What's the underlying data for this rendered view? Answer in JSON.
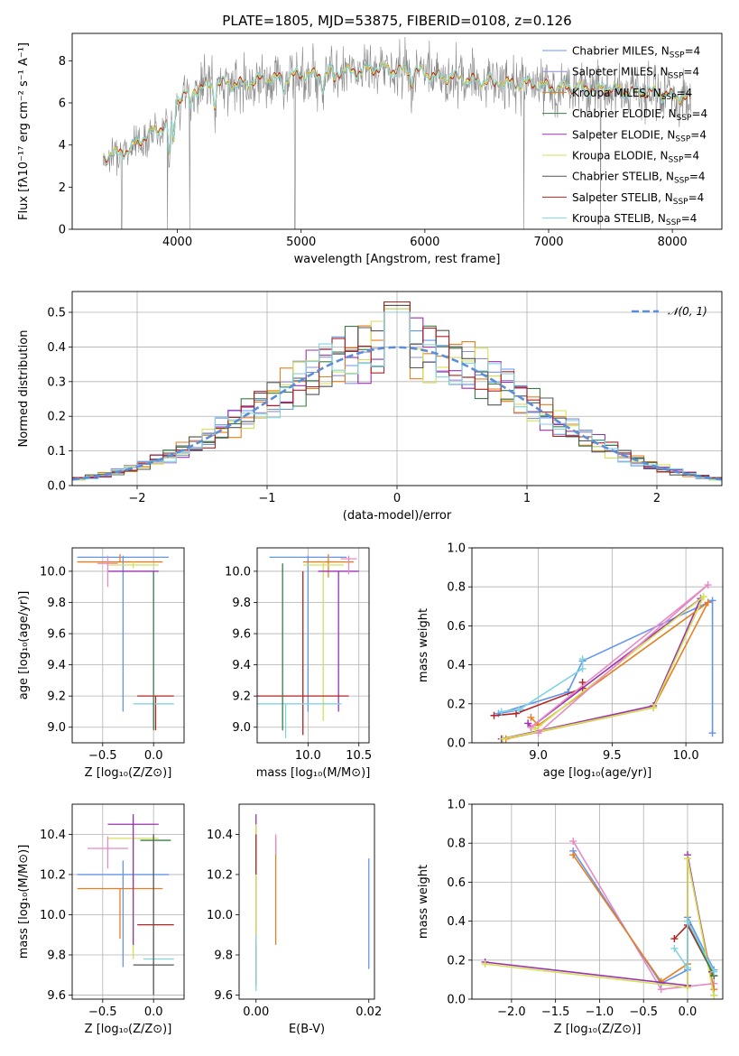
{
  "figure": {
    "title": "PLATE=1805, MJD=53875, FIBERID=0108, z=0.126",
    "model_colors": [
      "#6495ed",
      "#8f8fd9",
      "#e67e22",
      "#3a7d44",
      "#9b30b0",
      "#d4e157",
      "#555555",
      "#b22222",
      "#80d4e0"
    ]
  },
  "chart_data": [
    {
      "id": "spectrum",
      "type": "line",
      "xlabel": "wavelength [Angstrom, rest frame]",
      "ylabel": "Flux [fλ10⁻¹⁷ erg cm⁻² s⁻¹ A⁻¹]",
      "xlim": [
        3150,
        8400
      ],
      "ylim": [
        0,
        9.3
      ],
      "xticks": [
        4000,
        5000,
        6000,
        7000,
        8000
      ],
      "yticks": [
        0,
        2,
        4,
        6,
        8
      ],
      "grid": false,
      "legend": "top-right",
      "legend_entries": [
        {
          "label": "Chabrier MILES, N",
          "sub": "SSP",
          "tail": "=4",
          "color": "#6495ed"
        },
        {
          "label": "Salpeter MILES, N",
          "sub": "SSP",
          "tail": "=4",
          "color": "#8f8fd9"
        },
        {
          "label": "Kroupa MILES, N",
          "sub": "SSP",
          "tail": "=4",
          "color": "#e67e22"
        },
        {
          "label": "Chabrier ELODIE, N",
          "sub": "SSP",
          "tail": "=4",
          "color": "#3a7d44"
        },
        {
          "label": "Salpeter ELODIE, N",
          "sub": "SSP",
          "tail": "=4",
          "color": "#9b30b0"
        },
        {
          "label": "Kroupa ELODIE, N",
          "sub": "SSP",
          "tail": "=4",
          "color": "#d4e157"
        },
        {
          "label": "Chabrier STELIB, N",
          "sub": "SSP",
          "tail": "=4",
          "color": "#555555"
        },
        {
          "label": "Salpeter STELIB, N",
          "sub": "SSP",
          "tail": "=4",
          "color": "#b22222"
        },
        {
          "label": "Kroupa STELIB, N",
          "sub": "SSP",
          "tail": "=4",
          "color": "#80d4e0"
        }
      ],
      "continuum": {
        "x": [
          3400,
          3600,
          3800,
          3950,
          4000,
          4200,
          4400,
          4600,
          4800,
          5000,
          5200,
          5400,
          5600,
          5800,
          6000,
          6200,
          6400,
          6600,
          6800,
          7000,
          7200,
          7400,
          7600,
          7800,
          8000,
          8150
        ],
        "y": [
          3.4,
          3.8,
          4.6,
          5.2,
          6.2,
          6.8,
          6.9,
          7.0,
          7.2,
          7.3,
          7.4,
          7.5,
          7.6,
          7.6,
          7.4,
          7.2,
          7.1,
          7.0,
          6.9,
          6.8,
          6.7,
          6.7,
          6.6,
          6.5,
          6.4,
          6.1
        ]
      },
      "absorption_lines": [
        {
          "x": 3934,
          "depth": 1.6
        },
        {
          "x": 3969,
          "depth": 1.4
        },
        {
          "x": 4102,
          "depth": 0.9
        },
        {
          "x": 4304,
          "depth": 0.9
        },
        {
          "x": 4861,
          "depth": 0.6
        },
        {
          "x": 5175,
          "depth": 0.6
        },
        {
          "x": 5270,
          "depth": 0.4
        },
        {
          "x": 5893,
          "depth": 0.6
        },
        {
          "x": 6563,
          "depth": 0.4
        }
      ],
      "data_spikes": [
        {
          "x": 3550,
          "y": 0
        },
        {
          "x": 3920,
          "y": 0
        },
        {
          "x": 4100,
          "y": 0
        },
        {
          "x": 4950,
          "y": 0
        },
        {
          "x": 6800,
          "y": 0
        },
        {
          "x": 7420,
          "y": 0
        }
      ]
    },
    {
      "id": "residuals",
      "type": "area",
      "xlabel": "(data-model)/error",
      "ylabel": "Normed distribution",
      "xlim": [
        -2.5,
        2.5
      ],
      "ylim": [
        0,
        0.56
      ],
      "xticks": [
        -2,
        -1,
        0,
        1,
        2
      ],
      "yticks": [
        0.0,
        0.1,
        0.2,
        0.3,
        0.4,
        0.5
      ],
      "grid": true,
      "legend": "top-right",
      "legend_label": "𝒩(0, 1)",
      "bin_width": 0.1,
      "normal_curve": {
        "mean": 0,
        "sigma": 1,
        "color": "#5b8dd9"
      }
    },
    {
      "id": "age_vs_z",
      "type": "scatter",
      "xlabel": "Z [log₁₀(Z/Z⊙)]",
      "ylabel": "age  [log₁₀(age/yr)]",
      "xlim": [
        -0.8,
        0.3
      ],
      "ylim": [
        8.9,
        10.15
      ],
      "xticks": [
        -0.5,
        0.0
      ],
      "yticks": [
        9.0,
        9.2,
        9.4,
        9.6,
        9.8,
        10.0
      ],
      "grid": true,
      "points": [
        {
          "x": -0.3,
          "y": 10.09,
          "xerr": 0.45,
          "yerr_lo": 0.99,
          "yerr_hi": 0.01,
          "color": "#6495ed"
        },
        {
          "x": -0.33,
          "y": 10.06,
          "xerr": 0.42,
          "yerr_lo": 0.0,
          "yerr_hi": 0.05,
          "color": "#e67e22"
        },
        {
          "x": -0.2,
          "y": 10.04,
          "xerr": 0.25,
          "yerr_lo": 0.02,
          "yerr_hi": 0.02,
          "color": "#d4e157"
        },
        {
          "x": -0.2,
          "y": 10.0,
          "xerr": 0.25,
          "yerr_lo": 0.0,
          "yerr_hi": 0.0,
          "color": "#9b30b0"
        },
        {
          "x": -0.45,
          "y": 10.05,
          "xerr": 0.1,
          "yerr_lo": 0.15,
          "yerr_hi": 0.05,
          "color": "#e78ac3"
        },
        {
          "x": 0.02,
          "y": 9.2,
          "xerr": 0.18,
          "yerr_lo": 0.22,
          "yerr_hi": 0.0,
          "color": "#b22222"
        },
        {
          "x": 0.0,
          "y": 9.15,
          "xerr": 0.2,
          "yerr_lo": 0.15,
          "yerr_hi": 0.0,
          "color": "#80d4e0"
        },
        {
          "x": 0.0,
          "y": 9.15,
          "xerr": 0.0,
          "yerr_lo": 0.17,
          "yerr_hi": 0.85,
          "color": "#3a7d44"
        }
      ]
    },
    {
      "id": "age_vs_mass",
      "type": "scatter",
      "xlabel": "mass [log₁₀(M/M⊙)]",
      "ylabel": "",
      "xlim": [
        9.5,
        10.6
      ],
      "ylim": [
        8.9,
        10.15
      ],
      "xticks": [
        10.0,
        10.5
      ],
      "yticks": [
        9.0,
        9.2,
        9.4,
        9.6,
        9.8,
        10.0
      ],
      "grid": true,
      "points": [
        {
          "x": 10.0,
          "y": 10.09,
          "xerr": 0.38,
          "yerr_lo": 0.99,
          "yerr_hi": 0.01,
          "color": "#6495ed"
        },
        {
          "x": 10.2,
          "y": 10.06,
          "xerr": 0.25,
          "yerr_lo": 0.1,
          "yerr_hi": 0.05,
          "color": "#e67e22"
        },
        {
          "x": 10.15,
          "y": 10.04,
          "xerr": 0.2,
          "yerr_lo": 1.0,
          "yerr_hi": 0.02,
          "color": "#d4e157"
        },
        {
          "x": 10.3,
          "y": 10.0,
          "xerr": 0.2,
          "yerr_lo": 0.9,
          "yerr_hi": 0.0,
          "color": "#9b30b0"
        },
        {
          "x": 10.4,
          "y": 10.08,
          "xerr": 0.08,
          "yerr_lo": 0.1,
          "yerr_hi": 0.02,
          "color": "#e78ac3"
        },
        {
          "x": 9.95,
          "y": 9.2,
          "xerr": 0.45,
          "yerr_lo": 0.25,
          "yerr_hi": 0.8,
          "color": "#b22222"
        },
        {
          "x": 9.78,
          "y": 9.15,
          "xerr": 0.55,
          "yerr_lo": 0.22,
          "yerr_hi": 0.0,
          "color": "#80d4e0"
        },
        {
          "x": 9.75,
          "y": 9.15,
          "xerr": 0.0,
          "yerr_lo": 0.17,
          "yerr_hi": 0.9,
          "color": "#3a7d44"
        }
      ]
    },
    {
      "id": "weight_vs_age",
      "type": "line",
      "xlabel": "age  [log₁₀(age/yr)]",
      "ylabel": "mass weight",
      "xlim": [
        8.55,
        10.25
      ],
      "ylim": [
        0,
        1.0
      ],
      "xticks": [
        9.0,
        9.5,
        10.0
      ],
      "yticks": [
        0.0,
        0.2,
        0.4,
        0.6,
        0.8,
        1.0
      ],
      "grid": true,
      "series": [
        {
          "color": "#6495ed",
          "x": [
            8.88,
            8.73,
            9.2,
            9.3,
            10.18,
            10.18
          ],
          "y": [
            0.17,
            0.15,
            0.26,
            0.42,
            0.73,
            0.05
          ]
        },
        {
          "color": "#b22222",
          "x": [
            8.7,
            8.85,
            9.3,
            9.3
          ],
          "y": [
            0.14,
            0.15,
            0.28,
            0.31
          ]
        },
        {
          "color": "#9b30b0",
          "x": [
            8.75,
            9.78,
            10.1,
            8.95,
            8.93
          ],
          "y": [
            0.02,
            0.19,
            0.74,
            0.08,
            0.1
          ]
        },
        {
          "color": "#e67e22",
          "x": [
            8.78,
            9.78,
            10.15,
            9.0,
            8.95
          ],
          "y": [
            0.02,
            0.18,
            0.72,
            0.09,
            0.13
          ]
        },
        {
          "color": "#d4e157",
          "x": [
            8.76,
            9.78,
            10.12,
            8.98
          ],
          "y": [
            0.02,
            0.18,
            0.75,
            0.07
          ]
        },
        {
          "color": "#e78ac3",
          "x": [
            9.0,
            10.15,
            8.95
          ],
          "y": [
            0.05,
            0.81,
            0.08
          ]
        },
        {
          "color": "#80d4e0",
          "x": [
            8.75,
            8.87,
            9.3,
            9.3
          ],
          "y": [
            0.16,
            0.17,
            0.38,
            0.43
          ]
        }
      ]
    },
    {
      "id": "mass_vs_z",
      "type": "scatter",
      "xlabel": "Z [log₁₀(Z/Z⊙)]",
      "ylabel": "mass [log₁₀(M/M⊙)]",
      "xlim": [
        -0.8,
        0.3
      ],
      "ylim": [
        9.58,
        10.55
      ],
      "xticks": [
        -0.5,
        0.0
      ],
      "yticks": [
        9.6,
        9.8,
        10.0,
        10.2,
        10.4
      ],
      "grid": true,
      "points": [
        {
          "x": -0.3,
          "y": 10.2,
          "xerr": 0.45,
          "yerr_lo": 0.46,
          "yerr_hi": 0.07,
          "color": "#6495ed"
        },
        {
          "x": -0.33,
          "y": 10.13,
          "xerr": 0.42,
          "yerr_lo": 0.25,
          "yerr_hi": 0.0,
          "color": "#e67e22"
        },
        {
          "x": -0.2,
          "y": 10.38,
          "xerr": 0.25,
          "yerr_lo": 0.6,
          "yerr_hi": 0.0,
          "color": "#d4e157"
        },
        {
          "x": -0.2,
          "y": 10.45,
          "xerr": 0.25,
          "yerr_lo": 0.6,
          "yerr_hi": 0.05,
          "color": "#9b30b0"
        },
        {
          "x": -0.45,
          "y": 10.33,
          "xerr": 0.2,
          "yerr_lo": 0.1,
          "yerr_hi": 0.06,
          "color": "#e78ac3"
        },
        {
          "x": 0.02,
          "y": 9.95,
          "xerr": 0.18,
          "yerr_lo": 0.0,
          "yerr_hi": 0.0,
          "color": "#b22222"
        },
        {
          "x": 0.05,
          "y": 9.78,
          "xerr": 0.15,
          "yerr_lo": 0.0,
          "yerr_hi": 0.0,
          "color": "#80d4e0"
        },
        {
          "x": 0.0,
          "y": 9.75,
          "xerr": 0.2,
          "yerr_lo": 0.15,
          "yerr_hi": 0.65,
          "color": "#555555"
        },
        {
          "x": 0.02,
          "y": 10.37,
          "xerr": 0.15,
          "yerr_lo": 0.0,
          "yerr_hi": 0.0,
          "color": "#3a7d44"
        }
      ]
    },
    {
      "id": "mass_vs_ebv",
      "type": "scatter",
      "xlabel": "E(B-V)",
      "ylabel": "",
      "xlim": [
        -0.003,
        0.021
      ],
      "ylim": [
        9.58,
        10.55
      ],
      "xticks": [
        0.0,
        0.02
      ],
      "yticks": [
        9.6,
        9.8,
        10.0,
        10.2,
        10.4
      ],
      "grid": false,
      "points": [
        {
          "x": 0.0,
          "y": 10.35,
          "yerr_lo": 0.7,
          "yerr_hi": 0.15,
          "color": "#9b30b0"
        },
        {
          "x": 0.0,
          "y": 10.2,
          "yerr_lo": 0.35,
          "yerr_hi": 0.25,
          "color": "#d4e157"
        },
        {
          "x": 0.0,
          "y": 10.25,
          "yerr_lo": 0.05,
          "yerr_hi": 0.15,
          "color": "#b22222"
        },
        {
          "x": 0.0,
          "y": 9.8,
          "yerr_lo": 0.18,
          "yerr_hi": 0.1,
          "color": "#80d4e0"
        },
        {
          "x": 0.0035,
          "y": 10.1,
          "yerr_lo": 0.25,
          "yerr_hi": 0.28,
          "color": "#e67e22"
        },
        {
          "x": 0.0035,
          "y": 10.3,
          "yerr_lo": 0.0,
          "yerr_hi": 0.1,
          "color": "#e78ac3"
        },
        {
          "x": 0.02,
          "y": 10.0,
          "yerr_lo": 0.27,
          "yerr_hi": 0.28,
          "color": "#6495ed"
        }
      ]
    },
    {
      "id": "weight_vs_z",
      "type": "line",
      "xlabel": "Z [log₁₀(Z/Z⊙)]",
      "ylabel": "mass weight",
      "xlim": [
        -2.45,
        0.4
      ],
      "ylim": [
        0,
        1.0
      ],
      "xticks": [
        -2.0,
        -1.5,
        -1.0,
        -0.5,
        0.0
      ],
      "yticks": [
        0.0,
        0.2,
        0.4,
        0.6,
        0.8,
        1.0
      ],
      "grid": true,
      "series": [
        {
          "color": "#e78ac3",
          "x": [
            -1.3,
            -0.3,
            0.3
          ],
          "y": [
            0.81,
            0.05,
            0.08
          ]
        },
        {
          "color": "#6495ed",
          "x": [
            -1.3,
            -0.3,
            0.0,
            0.0,
            0.3
          ],
          "y": [
            0.76,
            0.08,
            0.15,
            0.42,
            0.15
          ]
        },
        {
          "color": "#e67e22",
          "x": [
            -1.3,
            -0.3,
            0.0,
            0.0,
            0.3
          ],
          "y": [
            0.74,
            0.09,
            0.18,
            0.72,
            0.05
          ]
        },
        {
          "color": "#9b30b0",
          "x": [
            -2.3,
            0.0,
            0.0,
            0.3
          ],
          "y": [
            0.19,
            0.07,
            0.74,
            0.02
          ]
        },
        {
          "color": "#d4e157",
          "x": [
            -2.3,
            0.0,
            0.0,
            0.3
          ],
          "y": [
            0.18,
            0.06,
            0.72,
            0.02
          ]
        },
        {
          "color": "#b22222",
          "x": [
            -0.15,
            0.0,
            0.28,
            0.3
          ],
          "y": [
            0.31,
            0.38,
            0.14,
            0.12
          ]
        },
        {
          "color": "#3a7d44",
          "x": [
            0.0,
            0.3
          ],
          "y": [
            0.4,
            0.12
          ]
        },
        {
          "color": "#80d4e0",
          "x": [
            -0.15,
            0.0,
            0.0,
            0.3
          ],
          "y": [
            0.26,
            0.16,
            0.4,
            0.14
          ]
        }
      ]
    }
  ]
}
